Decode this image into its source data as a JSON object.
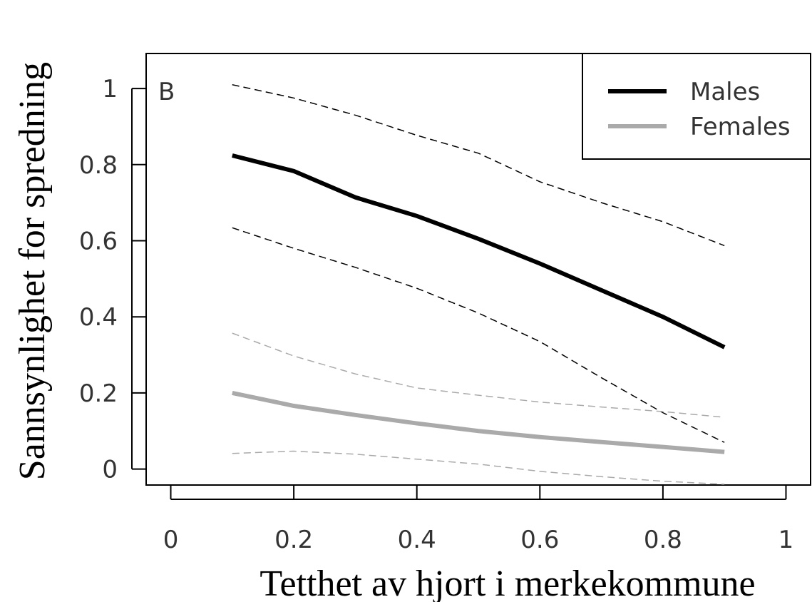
{
  "chart_data": {
    "type": "line",
    "annotation": "B",
    "x_label": "Tetthet av hjort i merkekommune",
    "y_label": "Sannsynlighet for spredning",
    "x": [
      0.1,
      0.2,
      0.3,
      0.4,
      0.5,
      0.6,
      0.7,
      0.8,
      0.9
    ],
    "series": [
      {
        "name": "Males",
        "color": "#000000",
        "values": [
          0.824,
          0.783,
          0.714,
          0.665,
          0.605,
          0.54,
          0.47,
          0.4,
          0.32
        ],
        "ci_upper": [
          1.01,
          0.975,
          0.93,
          0.877,
          0.83,
          0.755,
          0.7,
          0.65,
          0.587
        ],
        "ci_lower": [
          0.634,
          0.58,
          0.53,
          0.475,
          0.41,
          0.335,
          0.24,
          0.148,
          0.07
        ]
      },
      {
        "name": "Females",
        "color": "#aaaaaa",
        "values": [
          0.2,
          0.166,
          0.142,
          0.12,
          0.1,
          0.084,
          0.071,
          0.058,
          0.045
        ],
        "ci_upper": [
          0.357,
          0.297,
          0.25,
          0.213,
          0.194,
          0.176,
          0.163,
          0.151,
          0.136
        ],
        "ci_lower": [
          0.041,
          0.047,
          0.039,
          0.026,
          0.013,
          -0.006,
          -0.02,
          -0.032,
          -0.04
        ]
      }
    ],
    "xlim": [
      -0.04,
      1.04
    ],
    "ylim": [
      -0.042,
      1.092
    ],
    "xticks": [
      0,
      0.2,
      0.4,
      0.6,
      0.8,
      1
    ],
    "yticks": [
      0,
      0.2,
      0.4,
      0.6,
      0.8,
      1
    ],
    "legend": "topright"
  }
}
